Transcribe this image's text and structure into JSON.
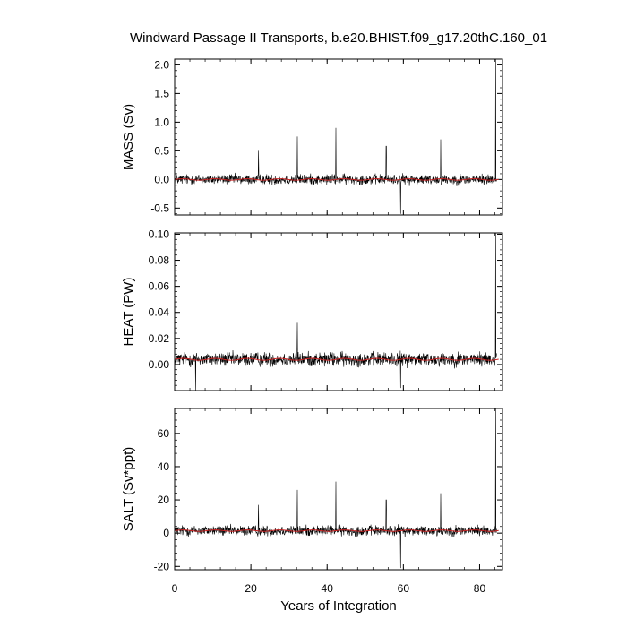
{
  "title": "Windward Passage II Transports, b.e20.BHIST.f09_g17.20thC.160_01",
  "colors": {
    "raw_series": "#000000",
    "smoothed_series": "#cc2222",
    "frame": "#000000",
    "background": "#ffffff"
  },
  "chart_data": [
    {
      "type": "line",
      "panel": "mass",
      "ylabel": "MASS (Sv)",
      "xlim": [
        0,
        86
      ],
      "ylim": [
        -0.62,
        2.1
      ],
      "yticks": [
        -0.5,
        0.0,
        0.5,
        1.0,
        1.5,
        2.0
      ],
      "ytick_labels": [
        "-0.5",
        "0.0",
        "0.5",
        "1.0",
        "1.5",
        "2.0"
      ],
      "xticks": [
        0,
        20,
        40,
        60,
        80
      ],
      "noise_amplitude": 0.1,
      "spikes": [
        {
          "x": 22.0,
          "y": 0.5
        },
        {
          "x": 32.2,
          "y": 0.75
        },
        {
          "x": 42.3,
          "y": 0.9
        },
        {
          "x": 55.5,
          "y": 0.58
        },
        {
          "x": 69.8,
          "y": 0.7
        },
        {
          "x": 59.3,
          "y": -0.6
        },
        {
          "x": 84.2,
          "y": 2.1
        }
      ],
      "smoothed_level": 0.0,
      "series": [
        {
          "values_description_omitted": true
        }
      ]
    },
    {
      "type": "line",
      "panel": "heat",
      "ylabel": "HEAT (PW)",
      "xlim": [
        0,
        86
      ],
      "ylim": [
        -0.02,
        0.101
      ],
      "yticks": [
        0.0,
        0.02,
        0.04,
        0.06,
        0.08,
        0.1
      ],
      "ytick_labels": [
        "0.00",
        "0.02",
        "0.04",
        "0.06",
        "0.08",
        "0.10"
      ],
      "xticks": [
        0,
        20,
        40,
        60,
        80
      ],
      "noise_amplitude": 0.006,
      "spikes": [
        {
          "x": 32.2,
          "y": 0.032
        },
        {
          "x": 5.5,
          "y": -0.02
        },
        {
          "x": 59.3,
          "y": -0.018
        },
        {
          "x": 84.2,
          "y": 0.101
        }
      ],
      "smoothed_level": 0.004,
      "series": [
        {
          "values_description_omitted": true
        }
      ]
    },
    {
      "type": "line",
      "panel": "salt",
      "ylabel": "SALT (Sv*ppt)",
      "xlim": [
        0,
        86
      ],
      "ylim": [
        -22,
        75
      ],
      "yticks": [
        -20,
        0,
        20,
        40,
        60
      ],
      "ytick_labels": [
        "-20",
        "0",
        "20",
        "40",
        "60"
      ],
      "xticks": [
        0,
        20,
        40,
        60,
        80
      ],
      "xtick_labels": [
        "0",
        "20",
        "40",
        "60",
        "80"
      ],
      "xlabel": "Years of Integration",
      "noise_amplitude": 3.5,
      "spikes": [
        {
          "x": 22.0,
          "y": 17
        },
        {
          "x": 32.2,
          "y": 26
        },
        {
          "x": 42.3,
          "y": 31
        },
        {
          "x": 55.5,
          "y": 20
        },
        {
          "x": 69.8,
          "y": 24
        },
        {
          "x": 59.3,
          "y": -21
        },
        {
          "x": 84.2,
          "y": 75
        }
      ],
      "smoothed_level": 1.5,
      "series": [
        {
          "values_description_omitted": true
        }
      ]
    }
  ]
}
